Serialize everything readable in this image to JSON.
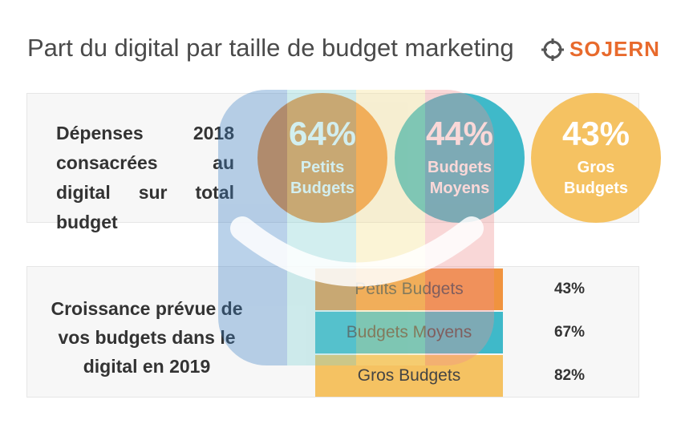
{
  "title": "Part du digital par taille de budget marketing",
  "brand": {
    "name": "SOJERN",
    "color": "#e86a2c",
    "icon": "compass-target-icon"
  },
  "sections": {
    "spend_label": "Dépenses 2018 consacrées au digital sur total budget",
    "growth_label": "Croissance prévue de vos budgets dans le digital en 2019"
  },
  "chart_data": [
    {
      "type": "bubble",
      "title": "Dépenses 2018 consacrées au digital sur total budget",
      "categories": [
        "Petits Budgets",
        "Budgets Moyens",
        "Gros Budgets"
      ],
      "values": [
        64,
        44,
        43
      ],
      "value_labels": [
        "64%",
        "44%",
        "43%"
      ],
      "circle_labels": [
        [
          "Petits",
          "Budgets"
        ],
        [
          "Budgets",
          "Moyens"
        ],
        [
          "Gros",
          "Budgets"
        ]
      ],
      "colors": [
        "#f0933f",
        "#3fb9c9",
        "#f5c262"
      ]
    },
    {
      "type": "table",
      "title": "Croissance prévue de vos budgets dans le digital en 2019",
      "categories": [
        "Petits Budgets",
        "Budgets Moyens",
        "Gros Budgets"
      ],
      "values": [
        43,
        67,
        82
      ],
      "value_labels": [
        "43%",
        "67%",
        "82%"
      ],
      "colors": [
        "#f0933f",
        "#3fb9c9",
        "#f5c262"
      ]
    }
  ]
}
